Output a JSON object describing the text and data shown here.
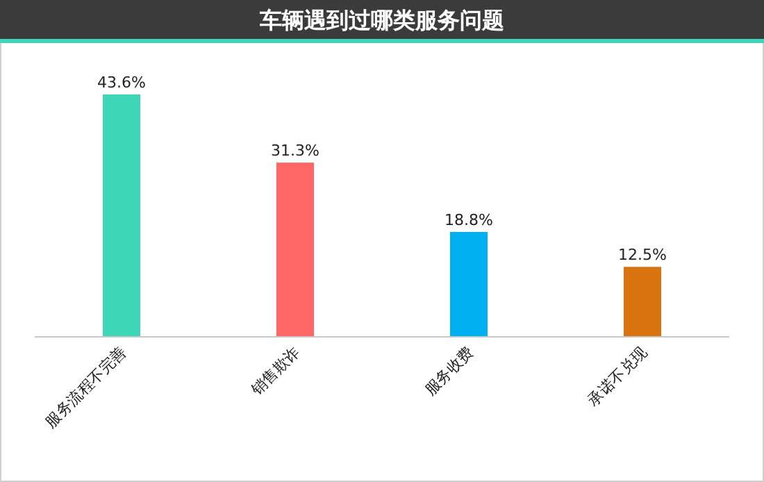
{
  "chart_data": {
    "type": "bar",
    "title": "车辆遇到过哪类服务问题",
    "categories": [
      "服务流程不完善",
      "销售欺诈",
      "服务收费",
      "承诺不兑现"
    ],
    "values": [
      43.6,
      31.3,
      18.8,
      12.5
    ],
    "colors": [
      "#3dd6b7",
      "#ff6666",
      "#00b0f0",
      "#d9730d"
    ],
    "value_labels": [
      "43.6%",
      "31.3%",
      "18.8%",
      "12.5%"
    ]
  }
}
